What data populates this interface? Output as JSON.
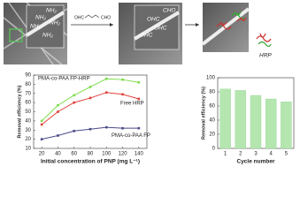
{
  "schematic": {
    "amine_labels": [
      "NH₂",
      "NH₂",
      "NH₂",
      "NH₂",
      "NH₂"
    ],
    "linker_left": "OHC",
    "linker_right": "CHO",
    "aldehyde_labels": [
      "CHO",
      "OHC",
      "OHC",
      "OHC"
    ],
    "enzyme_label": "HRP"
  },
  "chart_data": [
    {
      "type": "line",
      "x_label": "Initial concentration of PNP (mg L⁻¹)",
      "y_label": "Removal efficiency (%)",
      "x": [
        20,
        40,
        60,
        80,
        100,
        120,
        140
      ],
      "xlim": [
        10,
        150
      ],
      "xticks": [
        20,
        40,
        60,
        80,
        100,
        120,
        140
      ],
      "ylim": [
        10,
        90
      ],
      "yticks": [
        10,
        20,
        30,
        40,
        50,
        60,
        70,
        80,
        90
      ],
      "series": [
        {
          "name": "PMA-co-PAA FP-HRP",
          "color": "#7ddc4c",
          "values": [
            40,
            57,
            68,
            77,
            86,
            85,
            82
          ]
        },
        {
          "name": "Free HRP",
          "color": "#e0403a",
          "values": [
            36,
            50,
            60,
            65,
            71,
            69,
            64
          ]
        },
        {
          "name": "PMA-co-PAA FP",
          "color": "#4a4a8a",
          "values": [
            20,
            24,
            29,
            31,
            33,
            32,
            32
          ]
        }
      ]
    },
    {
      "type": "bar",
      "x_label": "Cycle number",
      "y_label": "Removal efficiency (%)",
      "categories": [
        "1",
        "2",
        "3",
        "4",
        "5"
      ],
      "values": [
        84,
        82,
        75,
        70,
        66
      ],
      "color": "#b5e6b0",
      "ylim": [
        0,
        100
      ],
      "yticks": [
        0,
        20,
        40,
        60,
        80,
        100
      ]
    }
  ]
}
